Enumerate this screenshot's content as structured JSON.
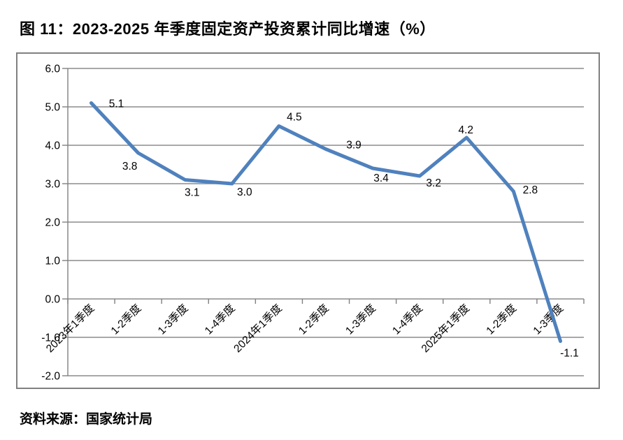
{
  "figure": {
    "title": "图 11：2023-2025 年季度固定资产投资累计同比增速（%）",
    "source": "资料来源：国家统计局"
  },
  "chart_data": {
    "type": "line",
    "title": "2023-2025 年季度固定资产投资累计同比增速（%）",
    "categories": [
      "2023年1季度",
      "1-2季度",
      "1-3季度",
      "1-4季度",
      "2024年1季度",
      "1-2季度",
      "1-3季度",
      "1-4季度",
      "2025年1季度",
      "1-2季度",
      "1-3季度"
    ],
    "values": [
      5.1,
      3.8,
      3.1,
      3.0,
      4.5,
      3.9,
      3.4,
      3.2,
      4.2,
      2.8,
      -1.1
    ],
    "xlabel": "",
    "ylabel": "",
    "ylim": [
      -2.0,
      6.0
    ],
    "ytick_step": 1.0,
    "ytick_labels": [
      "-2.0",
      "-1.0",
      "0.0",
      "1.0",
      "2.0",
      "3.0",
      "4.0",
      "5.0",
      "6.0"
    ],
    "grid": true,
    "legend_position": "none",
    "data_labels": true,
    "x_label_rotation_deg": -45,
    "colors": {
      "line": "#4F81BD",
      "gridline": "#8C8C8C",
      "axis": "#808080",
      "frame_border": "#808080",
      "text": "#000000",
      "background": "#FFFFFF"
    }
  }
}
